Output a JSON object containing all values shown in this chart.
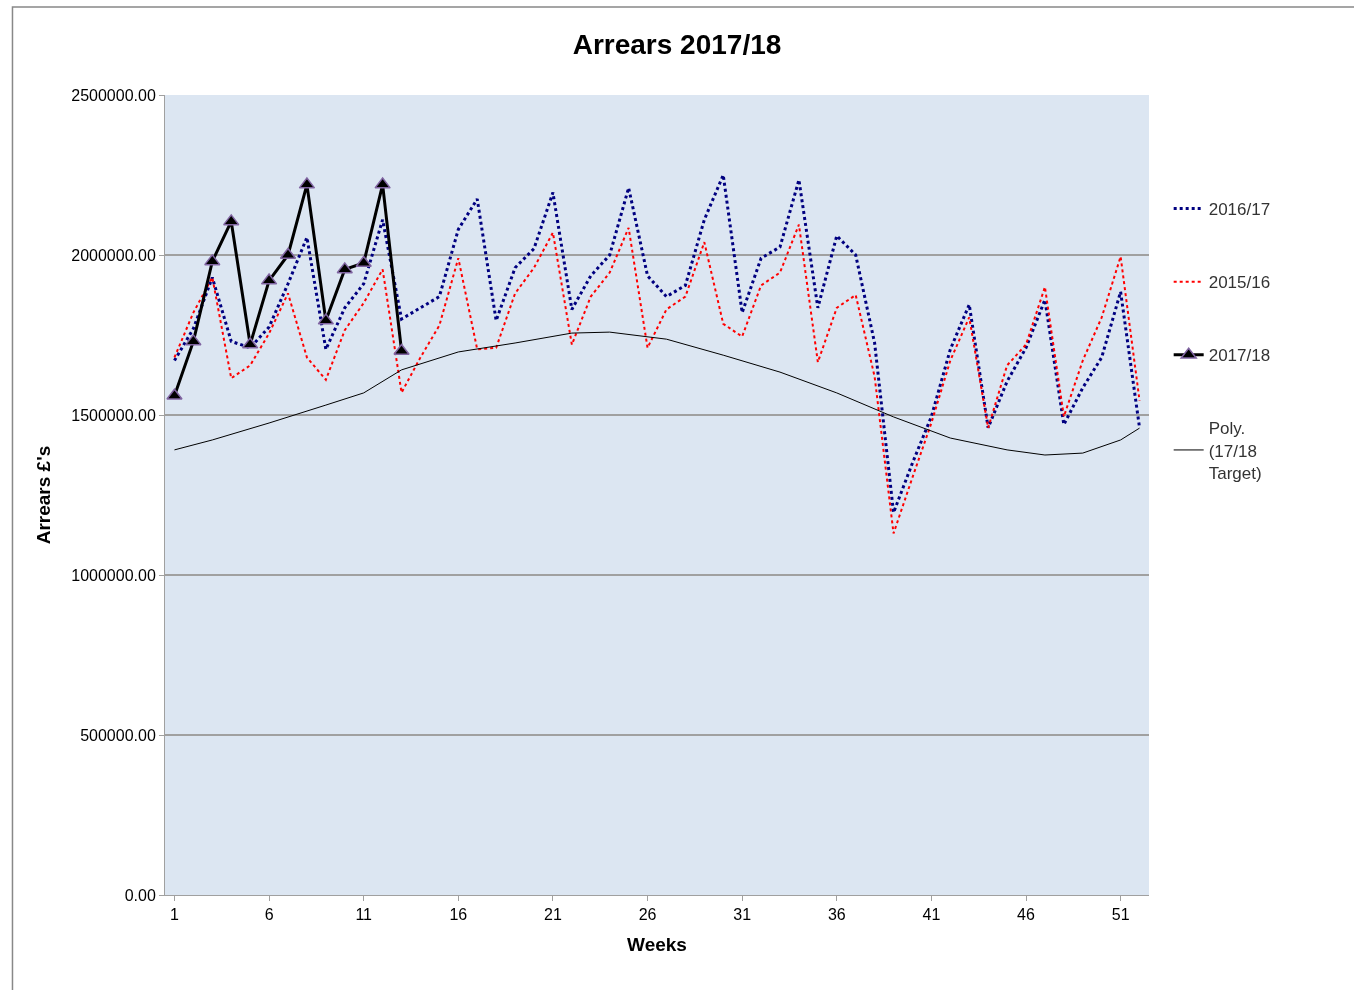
{
  "chart_data": {
    "type": "line",
    "title": "Arrears 2017/18",
    "xlabel": "Weeks",
    "ylabel": "Arrears £'s",
    "xlim": [
      0.5,
      52.5
    ],
    "xticks": [
      1,
      6,
      11,
      16,
      21,
      26,
      31,
      36,
      41,
      46,
      51
    ],
    "ylim": [
      0,
      2500000
    ],
    "yticks": [
      {
        "value": 0,
        "label": "0.00"
      },
      {
        "value": 500000,
        "label": "500000.00"
      },
      {
        "value": 1000000,
        "label": "1000000.00"
      },
      {
        "value": 1500000,
        "label": "1500000.00"
      },
      {
        "value": 2000000,
        "label": "2000000.00"
      },
      {
        "value": 2500000,
        "label": "2500000.00"
      }
    ],
    "grid": "y",
    "legend": "right",
    "series": [
      {
        "name": "2016/17",
        "color": "#000080",
        "line_style": "dotted",
        "marker": "none",
        "x": [
          1,
          2,
          3,
          4,
          5,
          6,
          7,
          8,
          9,
          10,
          11,
          12,
          13,
          14,
          15,
          16,
          17,
          18,
          19,
          20,
          21,
          22,
          23,
          24,
          25,
          26,
          27,
          28,
          29,
          30,
          31,
          32,
          33,
          34,
          35,
          36,
          37,
          38,
          39,
          40,
          41,
          42,
          43,
          44,
          45,
          46,
          47,
          48,
          49,
          50,
          51,
          52
        ],
        "values": [
          1670000,
          1770000,
          1930000,
          1730000,
          1710000,
          1775000,
          1910000,
          2055000,
          1705000,
          1835000,
          1910000,
          2110000,
          1800000,
          1835000,
          1870000,
          2080000,
          2175000,
          1795000,
          1960000,
          2020000,
          2195000,
          1830000,
          1935000,
          2000000,
          2210000,
          1935000,
          1870000,
          1905000,
          2110000,
          2250000,
          1820000,
          1990000,
          2025000,
          2235000,
          1835000,
          2060000,
          2000000,
          1725000,
          1195000,
          1350000,
          1495000,
          1705000,
          1845000,
          1460000,
          1605000,
          1710000,
          1860000,
          1470000,
          1585000,
          1680000,
          1885000,
          1460000
        ]
      },
      {
        "name": "2015/16",
        "color": "#ff0000",
        "line_style": "dotted",
        "marker": "none",
        "x": [
          1,
          2,
          3,
          4,
          5,
          6,
          7,
          8,
          9,
          10,
          11,
          12,
          13,
          14,
          15,
          16,
          17,
          18,
          19,
          20,
          21,
          22,
          23,
          24,
          25,
          26,
          27,
          28,
          29,
          30,
          31,
          32,
          33,
          34,
          35,
          36,
          37,
          38,
          39,
          40,
          41,
          42,
          43,
          44,
          45,
          46,
          47,
          48,
          49,
          50,
          51,
          52
        ],
        "values": [
          1680000,
          1820000,
          1930000,
          1615000,
          1655000,
          1755000,
          1880000,
          1680000,
          1610000,
          1765000,
          1850000,
          1955000,
          1570000,
          1680000,
          1780000,
          1990000,
          1705000,
          1710000,
          1880000,
          1960000,
          2070000,
          1720000,
          1870000,
          1945000,
          2085000,
          1710000,
          1830000,
          1870000,
          2040000,
          1785000,
          1745000,
          1905000,
          1945000,
          2095000,
          1665000,
          1835000,
          1875000,
          1620000,
          1130000,
          1305000,
          1475000,
          1670000,
          1805000,
          1460000,
          1655000,
          1720000,
          1900000,
          1495000,
          1670000,
          1805000,
          1995000,
          1545000
        ]
      },
      {
        "name": "2017/18",
        "color": "#000000",
        "line_style": "solid",
        "marker": "triangle",
        "x": [
          1,
          2,
          3,
          4,
          5,
          6,
          7,
          8,
          9,
          10,
          11,
          12,
          13
        ],
        "values": [
          1560000,
          1730000,
          1980000,
          2105000,
          1720000,
          1920000,
          2000000,
          2220000,
          1795000,
          1955000,
          1975000,
          2220000,
          1700000
        ]
      },
      {
        "name": "Poly. (17/18 Target)",
        "color": "#000000",
        "line_style": "solid",
        "marker": "none",
        "x": [
          1,
          3,
          6,
          9,
          11,
          13,
          16,
          19,
          22,
          24,
          27,
          30,
          33,
          36,
          39,
          42,
          45,
          47,
          49,
          51,
          52
        ],
        "values": [
          1391000,
          1422000,
          1475000,
          1531000,
          1569000,
          1641000,
          1697000,
          1725000,
          1756000,
          1759000,
          1737000,
          1687000,
          1634000,
          1569000,
          1494000,
          1428000,
          1391000,
          1375000,
          1381000,
          1422000,
          1459000
        ]
      }
    ]
  }
}
